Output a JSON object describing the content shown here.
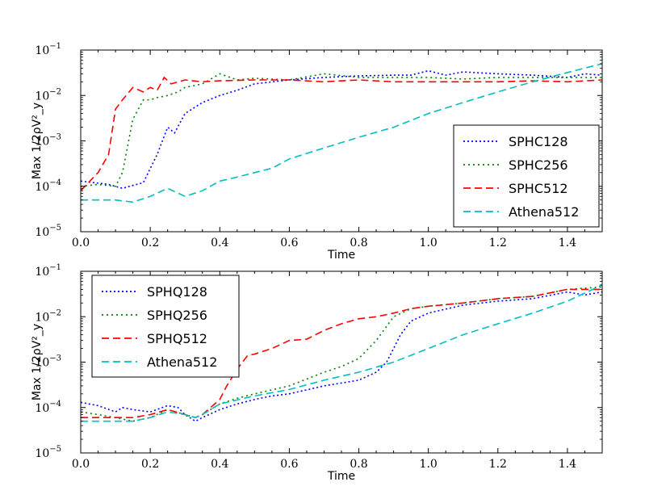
{
  "chart_data": [
    {
      "type": "line",
      "xlabel": "Time",
      "ylabel": "Max 1/2ρV²_y",
      "xlim": [
        0.0,
        1.5
      ],
      "ylim_log10": [
        -5,
        -1
      ],
      "yscale": "log",
      "legend_position": "lower-right",
      "x_ticks": [
        "0.0",
        "0.2",
        "0.4",
        "0.6",
        "0.8",
        "1.0",
        "1.2",
        "1.4"
      ],
      "y_ticks": [
        {
          "base": "10",
          "exp": "−5"
        },
        {
          "base": "10",
          "exp": "−4"
        },
        {
          "base": "10",
          "exp": "−3"
        },
        {
          "base": "10",
          "exp": "−2"
        },
        {
          "base": "10",
          "exp": "−1"
        }
      ],
      "series": [
        {
          "name": "SPHC128",
          "color": "#0000ff",
          "dash": "2,3",
          "x": [
            0.0,
            0.04,
            0.08,
            0.12,
            0.14,
            0.18,
            0.22,
            0.25,
            0.27,
            0.3,
            0.35,
            0.4,
            0.45,
            0.5,
            0.6,
            0.7,
            0.8,
            0.9,
            0.95,
            1.0,
            1.05,
            1.1,
            1.2,
            1.3,
            1.4,
            1.45,
            1.5
          ],
          "y": [
            0.00013,
            0.00012,
            0.00011,
            9e-05,
            0.0001,
            0.00012,
            0.0005,
            0.002,
            0.0015,
            0.004,
            0.007,
            0.01,
            0.013,
            0.018,
            0.022,
            0.025,
            0.027,
            0.028,
            0.028,
            0.035,
            0.028,
            0.033,
            0.03,
            0.028,
            0.025,
            0.03,
            0.028
          ]
        },
        {
          "name": "SPHC256",
          "color": "#008000",
          "dash": "2,4",
          "x": [
            0.0,
            0.05,
            0.1,
            0.12,
            0.15,
            0.18,
            0.2,
            0.22,
            0.25,
            0.28,
            0.3,
            0.35,
            0.4,
            0.45,
            0.5,
            0.6,
            0.7,
            0.8,
            0.9,
            1.0,
            1.1,
            1.2,
            1.3,
            1.4,
            1.5
          ],
          "y": [
            0.0001,
            0.00011,
            0.0001,
            0.0002,
            0.003,
            0.008,
            0.008,
            0.009,
            0.01,
            0.012,
            0.015,
            0.018,
            0.03,
            0.022,
            0.024,
            0.022,
            0.03,
            0.025,
            0.025,
            0.025,
            0.023,
            0.025,
            0.025,
            0.025,
            0.025
          ]
        },
        {
          "name": "SPHC512",
          "color": "#ff0000",
          "dash": "9,5",
          "x": [
            0.0,
            0.05,
            0.08,
            0.1,
            0.12,
            0.15,
            0.18,
            0.2,
            0.22,
            0.24,
            0.26,
            0.3,
            0.35,
            0.4,
            0.5,
            0.6,
            0.7,
            0.8,
            0.9,
            1.0,
            1.1,
            1.2,
            1.3,
            1.4,
            1.5
          ],
          "y": [
            8e-05,
            0.0002,
            0.0005,
            0.005,
            0.008,
            0.015,
            0.012,
            0.015,
            0.013,
            0.025,
            0.018,
            0.022,
            0.02,
            0.021,
            0.022,
            0.022,
            0.02,
            0.022,
            0.02,
            0.02,
            0.02,
            0.02,
            0.021,
            0.02,
            0.022
          ]
        },
        {
          "name": "Athena512",
          "color": "#00bfbf",
          "dash": "9,5",
          "x": [
            0.0,
            0.05,
            0.1,
            0.15,
            0.2,
            0.25,
            0.3,
            0.35,
            0.4,
            0.45,
            0.5,
            0.55,
            0.6,
            0.7,
            0.8,
            0.9,
            1.0,
            1.1,
            1.2,
            1.3,
            1.4,
            1.5
          ],
          "y": [
            5e-05,
            5e-05,
            5e-05,
            4.5e-05,
            6e-05,
            9e-05,
            6e-05,
            8e-05,
            0.00013,
            0.00016,
            0.0002,
            0.00025,
            0.0004,
            0.0007,
            0.0012,
            0.002,
            0.004,
            0.007,
            0.012,
            0.02,
            0.032,
            0.05
          ]
        }
      ]
    },
    {
      "type": "line",
      "xlabel": "Time",
      "ylabel": "Max 1/2ρV²_y",
      "xlim": [
        0.0,
        1.5
      ],
      "ylim_log10": [
        -5,
        -1
      ],
      "yscale": "log",
      "legend_position": "upper-left",
      "x_ticks": [
        "0.0",
        "0.2",
        "0.4",
        "0.6",
        "0.8",
        "1.0",
        "1.2",
        "1.4"
      ],
      "y_ticks": [
        {
          "base": "10",
          "exp": "−5"
        },
        {
          "base": "10",
          "exp": "−4"
        },
        {
          "base": "10",
          "exp": "−3"
        },
        {
          "base": "10",
          "exp": "−2"
        },
        {
          "base": "10",
          "exp": "−1"
        }
      ],
      "series": [
        {
          "name": "SPHQ128",
          "color": "#0000ff",
          "dash": "2,3",
          "x": [
            0.0,
            0.05,
            0.1,
            0.12,
            0.15,
            0.2,
            0.25,
            0.28,
            0.3,
            0.33,
            0.35,
            0.4,
            0.45,
            0.5,
            0.55,
            0.6,
            0.7,
            0.8,
            0.85,
            0.88,
            0.92,
            0.95,
            1.0,
            1.1,
            1.2,
            1.3,
            1.4,
            1.45,
            1.5
          ],
          "y": [
            0.00013,
            0.00011,
            8e-05,
            0.0001,
            9e-05,
            8e-05,
            0.00011,
            0.0001,
            7e-05,
            5e-05,
            6e-05,
            9e-05,
            0.00012,
            0.00015,
            0.00018,
            0.0002,
            0.0003,
            0.0004,
            0.0006,
            0.001,
            0.004,
            0.008,
            0.012,
            0.018,
            0.022,
            0.025,
            0.035,
            0.03,
            0.035
          ]
        },
        {
          "name": "SPHQ256",
          "color": "#008000",
          "dash": "2,4",
          "x": [
            0.0,
            0.05,
            0.1,
            0.15,
            0.2,
            0.25,
            0.3,
            0.33,
            0.35,
            0.4,
            0.45,
            0.5,
            0.6,
            0.7,
            0.75,
            0.8,
            0.85,
            0.9,
            0.95,
            1.0,
            1.1,
            1.2,
            1.3,
            1.4,
            1.5
          ],
          "y": [
            8e-05,
            7e-05,
            6e-05,
            5e-05,
            6e-05,
            9e-05,
            7e-05,
            6e-05,
            7e-05,
            0.00012,
            0.00016,
            0.0002,
            0.0003,
            0.0006,
            0.0008,
            0.0012,
            0.003,
            0.01,
            0.015,
            0.017,
            0.02,
            0.025,
            0.028,
            0.04,
            0.045
          ]
        },
        {
          "name": "SPHQ512",
          "color": "#ff0000",
          "dash": "9,5",
          "x": [
            0.0,
            0.05,
            0.1,
            0.15,
            0.2,
            0.25,
            0.3,
            0.33,
            0.35,
            0.4,
            0.42,
            0.45,
            0.48,
            0.5,
            0.55,
            0.6,
            0.65,
            0.7,
            0.75,
            0.8,
            0.85,
            0.9,
            0.95,
            1.0,
            1.1,
            1.2,
            1.3,
            1.4,
            1.5
          ],
          "y": [
            6e-05,
            6e-05,
            6e-05,
            6e-05,
            7e-05,
            9e-05,
            7e-05,
            6e-05,
            7e-05,
            0.00015,
            0.0003,
            0.0007,
            0.0014,
            0.0015,
            0.002,
            0.003,
            0.0032,
            0.005,
            0.007,
            0.009,
            0.01,
            0.012,
            0.015,
            0.017,
            0.02,
            0.025,
            0.028,
            0.04,
            0.04
          ]
        },
        {
          "name": "Athena512",
          "color": "#00bfbf",
          "dash": "9,5",
          "x": [
            0.0,
            0.05,
            0.1,
            0.15,
            0.2,
            0.25,
            0.3,
            0.33,
            0.35,
            0.4,
            0.5,
            0.6,
            0.7,
            0.8,
            0.9,
            1.0,
            1.1,
            1.2,
            1.3,
            1.4,
            1.5
          ],
          "y": [
            5e-05,
            5e-05,
            5e-05,
            5e-05,
            6e-05,
            8e-05,
            7e-05,
            6e-05,
            7e-05,
            0.00012,
            0.00018,
            0.00025,
            0.0004,
            0.0006,
            0.001,
            0.002,
            0.004,
            0.007,
            0.012,
            0.022,
            0.05
          ]
        }
      ]
    }
  ]
}
